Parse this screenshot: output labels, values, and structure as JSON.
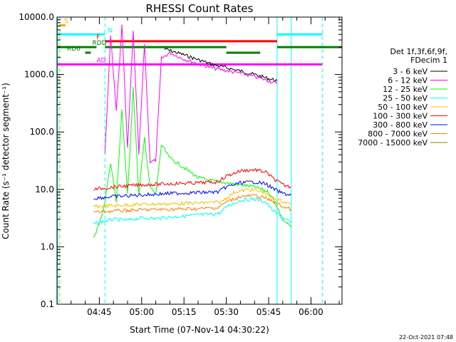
{
  "chart_data": {
    "type": "line",
    "title": "RHESSI Count Rates",
    "xlabel": "Start Time (07-Nov-14 04:30:22)",
    "ylabel": "Count Rate (s⁻¹ detector segment⁻¹)",
    "yscale": "log",
    "ylim": [
      0.1,
      10000
    ],
    "xlim": [
      "04:30",
      "06:11"
    ],
    "x_ticks": [
      "04:45",
      "05:00",
      "05:15",
      "05:30",
      "05:45",
      "06:00"
    ],
    "y_ticks": [
      "0.1",
      "1.0",
      "10.0",
      "100.0",
      "1000.0",
      "10000.0"
    ],
    "legend_header": [
      "Det 1f,3f,6f,9f,",
      "FDecim 1"
    ],
    "legend_position": "right",
    "series": [
      {
        "name": "3 - 6 keV",
        "color": "#000000",
        "points": [
          [
            "05:08",
            2800
          ],
          [
            "05:15",
            2200
          ],
          [
            "05:25",
            1500
          ],
          [
            "05:35",
            1150
          ],
          [
            "05:40",
            1000
          ],
          [
            "05:45",
            850
          ],
          [
            "05:48",
            780
          ]
        ]
      },
      {
        "name": "6 - 12 keV",
        "color": "#ff00ff",
        "points": [
          [
            "04:47",
            40
          ],
          [
            "04:49",
            5000
          ],
          [
            "04:51",
            220
          ],
          [
            "04:53",
            7000
          ],
          [
            "04:55",
            50
          ],
          [
            "04:57",
            5500
          ],
          [
            "04:59",
            40
          ],
          [
            "05:01",
            3500
          ],
          [
            "05:03",
            30
          ],
          [
            "05:05",
            32
          ],
          [
            "05:07",
            1900
          ],
          [
            "05:10",
            2400
          ],
          [
            "05:15",
            1850
          ],
          [
            "05:25",
            1300
          ],
          [
            "05:35",
            1050
          ],
          [
            "05:40",
            920
          ],
          [
            "05:45",
            780
          ],
          [
            "05:48",
            690
          ]
        ]
      },
      {
        "name": "12 - 25 keV",
        "color": "#00ff00",
        "points": [
          [
            "04:43",
            1.5
          ],
          [
            "04:45",
            2.5
          ],
          [
            "04:47",
            6
          ],
          [
            "04:49",
            30
          ],
          [
            "04:51",
            6
          ],
          [
            "04:53",
            250
          ],
          [
            "04:55",
            8
          ],
          [
            "04:57",
            600
          ],
          [
            "04:59",
            8
          ],
          [
            "05:01",
            80
          ],
          [
            "05:03",
            11
          ],
          [
            "05:05",
            8
          ],
          [
            "05:07",
            60
          ],
          [
            "05:10",
            35
          ],
          [
            "05:15",
            24
          ],
          [
            "05:20",
            16
          ],
          [
            "05:25",
            14
          ],
          [
            "05:30",
            13
          ],
          [
            "05:35",
            12
          ],
          [
            "05:40",
            11
          ],
          [
            "05:45",
            9
          ],
          [
            "05:48",
            5
          ],
          [
            "05:50",
            3
          ],
          [
            "05:53",
            2.2
          ]
        ]
      },
      {
        "name": "25 - 50 keV",
        "color": "#00ffff",
        "points": [
          [
            "04:43",
            2.5
          ],
          [
            "04:47",
            2.8
          ],
          [
            "04:50",
            3.0
          ],
          [
            "04:55",
            2.9
          ],
          [
            "05:00",
            3.2
          ],
          [
            "05:05",
            3.1
          ],
          [
            "05:10",
            3.3
          ],
          [
            "05:15",
            3.4
          ],
          [
            "05:20",
            3.6
          ],
          [
            "05:25",
            3.7
          ],
          [
            "05:28",
            3.9
          ],
          [
            "05:30",
            5.0
          ],
          [
            "05:35",
            6.5
          ],
          [
            "05:40",
            6.8
          ],
          [
            "05:44",
            6.0
          ],
          [
            "05:46",
            4.5
          ],
          [
            "05:50",
            3.2
          ],
          [
            "05:53",
            2.6
          ]
        ]
      },
      {
        "name": "50 - 100 keV",
        "color": "#ffc000",
        "points": [
          [
            "04:43",
            5
          ],
          [
            "04:50",
            5.2
          ],
          [
            "05:00",
            5.5
          ],
          [
            "05:10",
            5.6
          ],
          [
            "05:20",
            5.8
          ],
          [
            "05:28",
            6.0
          ],
          [
            "05:33",
            9
          ],
          [
            "05:38",
            10
          ],
          [
            "05:43",
            9
          ],
          [
            "05:47",
            7
          ],
          [
            "05:53",
            5.5
          ]
        ]
      },
      {
        "name": "100 - 300 keV",
        "color": "#ff0000",
        "points": [
          [
            "04:43",
            10
          ],
          [
            "04:50",
            11
          ],
          [
            "05:00",
            12
          ],
          [
            "05:10",
            12.5
          ],
          [
            "05:20",
            13
          ],
          [
            "05:27",
            13.5
          ],
          [
            "05:30",
            17
          ],
          [
            "05:35",
            21
          ],
          [
            "05:40",
            22
          ],
          [
            "05:44",
            20
          ],
          [
            "05:47",
            15
          ],
          [
            "05:50",
            12
          ],
          [
            "05:53",
            11
          ]
        ]
      },
      {
        "name": "300 - 800 keV",
        "color": "#0000ff",
        "points": [
          [
            "04:43",
            7
          ],
          [
            "04:50",
            7.5
          ],
          [
            "05:00",
            8
          ],
          [
            "05:10",
            8.5
          ],
          [
            "05:20",
            8.8
          ],
          [
            "05:27",
            9
          ],
          [
            "05:30",
            11
          ],
          [
            "05:35",
            13
          ],
          [
            "05:40",
            13.5
          ],
          [
            "05:44",
            12.5
          ],
          [
            "05:47",
            10
          ],
          [
            "05:50",
            8.5
          ],
          [
            "05:53",
            8
          ]
        ]
      },
      {
        "name": "800 - 7000 keV",
        "color": "#ff8000",
        "points": [
          [
            "04:43",
            4
          ],
          [
            "04:50",
            4.2
          ],
          [
            "05:00",
            4.4
          ],
          [
            "05:10",
            4.5
          ],
          [
            "05:20",
            4.6
          ],
          [
            "05:27",
            4.8
          ],
          [
            "05:30",
            6
          ],
          [
            "05:35",
            7.5
          ],
          [
            "05:40",
            7.8
          ],
          [
            "05:44",
            7
          ],
          [
            "05:47",
            6
          ],
          [
            "05:50",
            5
          ],
          [
            "05:53",
            4.5
          ]
        ]
      },
      {
        "name": "7000 - 15000 keV",
        "color": "#808000",
        "points": []
      }
    ],
    "vertical_markers": [
      {
        "t": "04:30",
        "color": "#ffa500",
        "style": "dashed"
      },
      {
        "t": "04:30",
        "color": "#00ffff",
        "style": "solid"
      },
      {
        "t": "04:47",
        "color": "#00ffff",
        "style": "dashed"
      },
      {
        "t": "05:48",
        "color": "#00ffff",
        "style": "solid"
      },
      {
        "t": "05:53",
        "color": "#00ffff",
        "style": "solid"
      },
      {
        "t": "06:04",
        "color": "#00ffff",
        "style": "dashed"
      }
    ],
    "flag_bars": [
      {
        "label": "S",
        "color": "#ffa500",
        "y": 7200,
        "segments": [
          [
            "04:31",
            "04:33"
          ]
        ]
      },
      {
        "label": "N",
        "color": "#00ffff",
        "y": 5000,
        "segments": [
          [
            "04:30",
            "04:47"
          ],
          [
            "05:48",
            "06:04"
          ]
        ]
      },
      {
        "label": "F",
        "color": "#ff0000",
        "y": 3800,
        "segments": [
          [
            "04:47",
            "05:48"
          ]
        ]
      },
      {
        "label": "RDD",
        "color": "#008000",
        "y": 3000,
        "segments": [
          [
            "04:30",
            "04:44"
          ],
          [
            "04:47",
            "05:30"
          ],
          [
            "05:48",
            "06:11"
          ]
        ]
      },
      {
        "label": "RD6",
        "color": "#008000",
        "y": 2400,
        "segments": [
          [
            "04:40",
            "04:42"
          ],
          [
            "05:30",
            "05:42"
          ]
        ]
      },
      {
        "label": "AD",
        "color": "#ff00ff",
        "y": 1500,
        "segments": [
          [
            "04:30",
            "04:47"
          ],
          [
            "04:47",
            "05:08"
          ],
          [
            "05:08",
            "06:04"
          ]
        ]
      }
    ],
    "grid": false
  },
  "footer": {
    "timestamp": "22-Oct-2021 07:48"
  }
}
